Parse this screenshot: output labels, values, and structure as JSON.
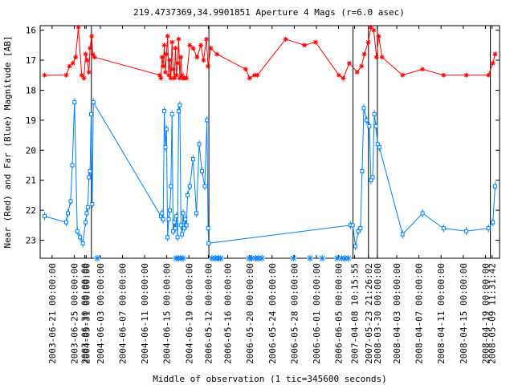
{
  "chart_data": {
    "type": "line",
    "title": "219.4737369,34.9901851   Aperture 4 Mags (r=6.0 asec)",
    "xlabel": "Middle of observation (1 tic=345600 seconds)",
    "ylabel": "Near (Red) and Far (Blue) Magnitude [AB]",
    "ylim": [
      23.6,
      15.85
    ],
    "y_ticks": [
      16,
      17,
      18,
      19,
      20,
      21,
      22,
      23
    ],
    "grid": false,
    "x_ticks": [
      {
        "label": "2003-06-21 00:00:00",
        "x": 0.75
      },
      {
        "label": "2003-06-25 00:00:00",
        "x": 4.75
      },
      {
        "label": "2003-06-30 00:00:00",
        "x": 6.65
      },
      {
        "label": "2004-05-31 00:00:00",
        "x": 6.9
      },
      {
        "label": "2004-06-03 00:00:00",
        "x": 9.45
      },
      {
        "label": "2004-06-07 00:00:00",
        "x": 13.45
      },
      {
        "label": "2004-06-11 00:00:00",
        "x": 17.45
      },
      {
        "label": "2004-06-15 00:00:00",
        "x": 21.45
      },
      {
        "label": "2004-06-19 00:00:00",
        "x": 25.45
      },
      {
        "label": "2006-05-12 00:00:00",
        "x": 28.95
      },
      {
        "label": "2006-05-16 00:00:00",
        "x": 32.45
      },
      {
        "label": "2006-05-20 00:00:00",
        "x": 36.45
      },
      {
        "label": "2006-05-24 00:00:00",
        "x": 40.45
      },
      {
        "label": "2006-05-28 00:00:00",
        "x": 44.45
      },
      {
        "label": "2006-06-01 00:00:00",
        "x": 48.45
      },
      {
        "label": "2006-06-05 00:00:00",
        "x": 52.45
      },
      {
        "label": "2007-04-08 10:15:55",
        "x": 55.35
      },
      {
        "label": "2007-05-23 21:26:02",
        "x": 57.85
      },
      {
        "label": "2008-03-30 00:00:00",
        "x": 59.45
      },
      {
        "label": "2008-04-03 00:00:00",
        "x": 62.95
      },
      {
        "label": "2008-04-07 00:00:00",
        "x": 66.95
      },
      {
        "label": "2008-04-11 00:00:00",
        "x": 70.95
      },
      {
        "label": "2008-04-15 00:00:00",
        "x": 74.95
      },
      {
        "label": "2008-04-19 00:00:00",
        "x": 78.95
      },
      {
        "label": "2008-05-09 11:31:42",
        "x": 80.15
      }
    ],
    "segment_dividers": [
      7.85,
      29.05,
      55.05,
      57.85,
      59.45,
      79.85
    ],
    "xlim": [
      -1.4,
      81.5
    ],
    "series": [
      {
        "color": "#ff0000",
        "marker": "star",
        "points": [
          [
            -0.6,
            17.5
          ],
          [
            3.3,
            17.5
          ],
          [
            3.9,
            17.2
          ],
          [
            4.5,
            17.1
          ],
          [
            5.0,
            16.9
          ],
          [
            5.5,
            15.9
          ],
          [
            6.1,
            17.5
          ],
          [
            6.5,
            17.6
          ],
          [
            6.8,
            16.8
          ],
          [
            7.1,
            17.0
          ],
          [
            7.4,
            17.4
          ],
          [
            7.6,
            16.6
          ],
          [
            7.9,
            16.2
          ],
          [
            8.1,
            16.8
          ],
          [
            8.4,
            16.9
          ],
          [
            20.2,
            17.5
          ],
          [
            20.4,
            17.6
          ],
          [
            20.6,
            16.9
          ],
          [
            20.8,
            17.2
          ],
          [
            21.0,
            16.5
          ],
          [
            21.2,
            17.4
          ],
          [
            21.4,
            16.8
          ],
          [
            21.6,
            16.2
          ],
          [
            21.8,
            17.5
          ],
          [
            22.0,
            17.0
          ],
          [
            22.2,
            17.6
          ],
          [
            22.4,
            16.4
          ],
          [
            22.6,
            17.3
          ],
          [
            22.8,
            17.6
          ],
          [
            23.0,
            16.6
          ],
          [
            23.2,
            17.5
          ],
          [
            23.4,
            17.1
          ],
          [
            23.6,
            16.3
          ],
          [
            23.8,
            17.6
          ],
          [
            24.0,
            16.9
          ],
          [
            24.2,
            17.5
          ],
          [
            24.4,
            17.6
          ],
          [
            24.6,
            17.6
          ],
          [
            25.0,
            17.6
          ],
          [
            25.6,
            16.5
          ],
          [
            26.2,
            16.6
          ],
          [
            26.9,
            16.9
          ],
          [
            27.6,
            16.5
          ],
          [
            28.1,
            17.0
          ],
          [
            28.6,
            16.3
          ],
          [
            28.9,
            17.2
          ],
          [
            29.4,
            16.6
          ],
          [
            30.5,
            16.8
          ],
          [
            35.7,
            17.3
          ],
          [
            36.4,
            17.6
          ],
          [
            37.3,
            17.5
          ],
          [
            37.8,
            17.5
          ],
          [
            42.9,
            16.3
          ],
          [
            46.3,
            16.5
          ],
          [
            48.3,
            16.4
          ],
          [
            52.5,
            17.5
          ],
          [
            53.3,
            17.6
          ],
          [
            54.4,
            17.1
          ],
          [
            55.8,
            17.4
          ],
          [
            56.6,
            17.2
          ],
          [
            57.1,
            16.8
          ],
          [
            57.8,
            16.4
          ],
          [
            58.3,
            15.9
          ],
          [
            58.8,
            16.0
          ],
          [
            59.3,
            16.9
          ],
          [
            59.7,
            16.2
          ],
          [
            60.3,
            16.9
          ],
          [
            64.0,
            17.5
          ],
          [
            67.6,
            17.3
          ],
          [
            71.4,
            17.5
          ],
          [
            75.5,
            17.5
          ],
          [
            79.5,
            17.5
          ],
          [
            80.3,
            17.1
          ],
          [
            80.7,
            16.8
          ]
        ]
      },
      {
        "color": "#0080ff",
        "marker": "square",
        "points": [
          [
            -0.6,
            22.2
          ],
          [
            3.3,
            22.4
          ],
          [
            3.6,
            22.1
          ],
          [
            4.1,
            21.7
          ],
          [
            4.4,
            20.5
          ],
          [
            4.8,
            18.4
          ],
          [
            5.3,
            22.7
          ],
          [
            5.8,
            22.9
          ],
          [
            6.3,
            23.1
          ],
          [
            6.8,
            22.4
          ],
          [
            7.0,
            22.1
          ],
          [
            7.2,
            21.9
          ],
          [
            7.4,
            20.9
          ],
          [
            7.6,
            20.7
          ],
          [
            7.8,
            18.8
          ],
          [
            8.0,
            21.8
          ],
          [
            8.2,
            18.4
          ],
          [
            20.4,
            22.2
          ],
          [
            20.6,
            22.1
          ],
          [
            20.8,
            22.3
          ],
          [
            21.0,
            18.7
          ],
          [
            21.2,
            19.9
          ],
          [
            21.4,
            19.3
          ],
          [
            21.6,
            22.9
          ],
          [
            21.8,
            22.3
          ],
          [
            22.0,
            22.0
          ],
          [
            22.2,
            21.2
          ],
          [
            22.4,
            18.8
          ],
          [
            22.6,
            22.7
          ],
          [
            22.8,
            22.4
          ],
          [
            23.0,
            22.6
          ],
          [
            23.2,
            22.2
          ],
          [
            23.4,
            22.9
          ],
          [
            23.6,
            18.7
          ],
          [
            23.8,
            18.5
          ],
          [
            24.0,
            22.5
          ],
          [
            24.2,
            22.8
          ],
          [
            24.4,
            22.1
          ],
          [
            24.6,
            22.6
          ],
          [
            24.8,
            22.3
          ],
          [
            25.0,
            22.5
          ],
          [
            25.2,
            21.5
          ],
          [
            25.6,
            21.2
          ],
          [
            26.2,
            20.3
          ],
          [
            26.8,
            22.1
          ],
          [
            27.3,
            19.8
          ],
          [
            27.8,
            20.7
          ],
          [
            28.3,
            21.2
          ],
          [
            28.7,
            19.0
          ],
          [
            28.9,
            22.6
          ],
          [
            29.0,
            23.1
          ],
          [
            54.6,
            22.5
          ],
          [
            55.0,
            22.5
          ],
          [
            55.5,
            23.2
          ],
          [
            56.0,
            22.7
          ],
          [
            56.4,
            22.6
          ],
          [
            56.7,
            20.7
          ],
          [
            57.0,
            18.6
          ],
          [
            57.5,
            19.0
          ],
          [
            58.0,
            19.2
          ],
          [
            58.3,
            21.0
          ],
          [
            58.6,
            20.9
          ],
          [
            58.9,
            18.8
          ],
          [
            59.2,
            19.2
          ],
          [
            59.5,
            19.8
          ],
          [
            59.8,
            19.9
          ],
          [
            64.0,
            22.8
          ],
          [
            67.6,
            22.1
          ],
          [
            71.4,
            22.6
          ],
          [
            75.5,
            22.7
          ],
          [
            79.5,
            22.6
          ],
          [
            80.3,
            22.4
          ],
          [
            80.7,
            21.2
          ]
        ]
      },
      {
        "color": "#0080ff",
        "marker": "x_baseline",
        "points": [
          [
            8.9,
            23.6
          ],
          [
            23.1,
            23.6
          ],
          [
            23.5,
            23.6
          ],
          [
            24.0,
            23.6
          ],
          [
            24.4,
            23.6
          ],
          [
            29.6,
            23.6
          ],
          [
            30.2,
            23.6
          ],
          [
            30.7,
            23.6
          ],
          [
            31.2,
            23.6
          ],
          [
            36.3,
            23.6
          ],
          [
            36.8,
            23.6
          ],
          [
            37.5,
            23.6
          ],
          [
            38.0,
            23.6
          ],
          [
            38.6,
            23.6
          ],
          [
            44.3,
            23.6
          ],
          [
            47.3,
            23.6
          ],
          [
            49.5,
            23.6
          ],
          [
            52.2,
            23.6
          ],
          [
            53.0,
            23.6
          ],
          [
            53.6,
            23.6
          ],
          [
            54.2,
            23.6
          ]
        ]
      }
    ]
  }
}
